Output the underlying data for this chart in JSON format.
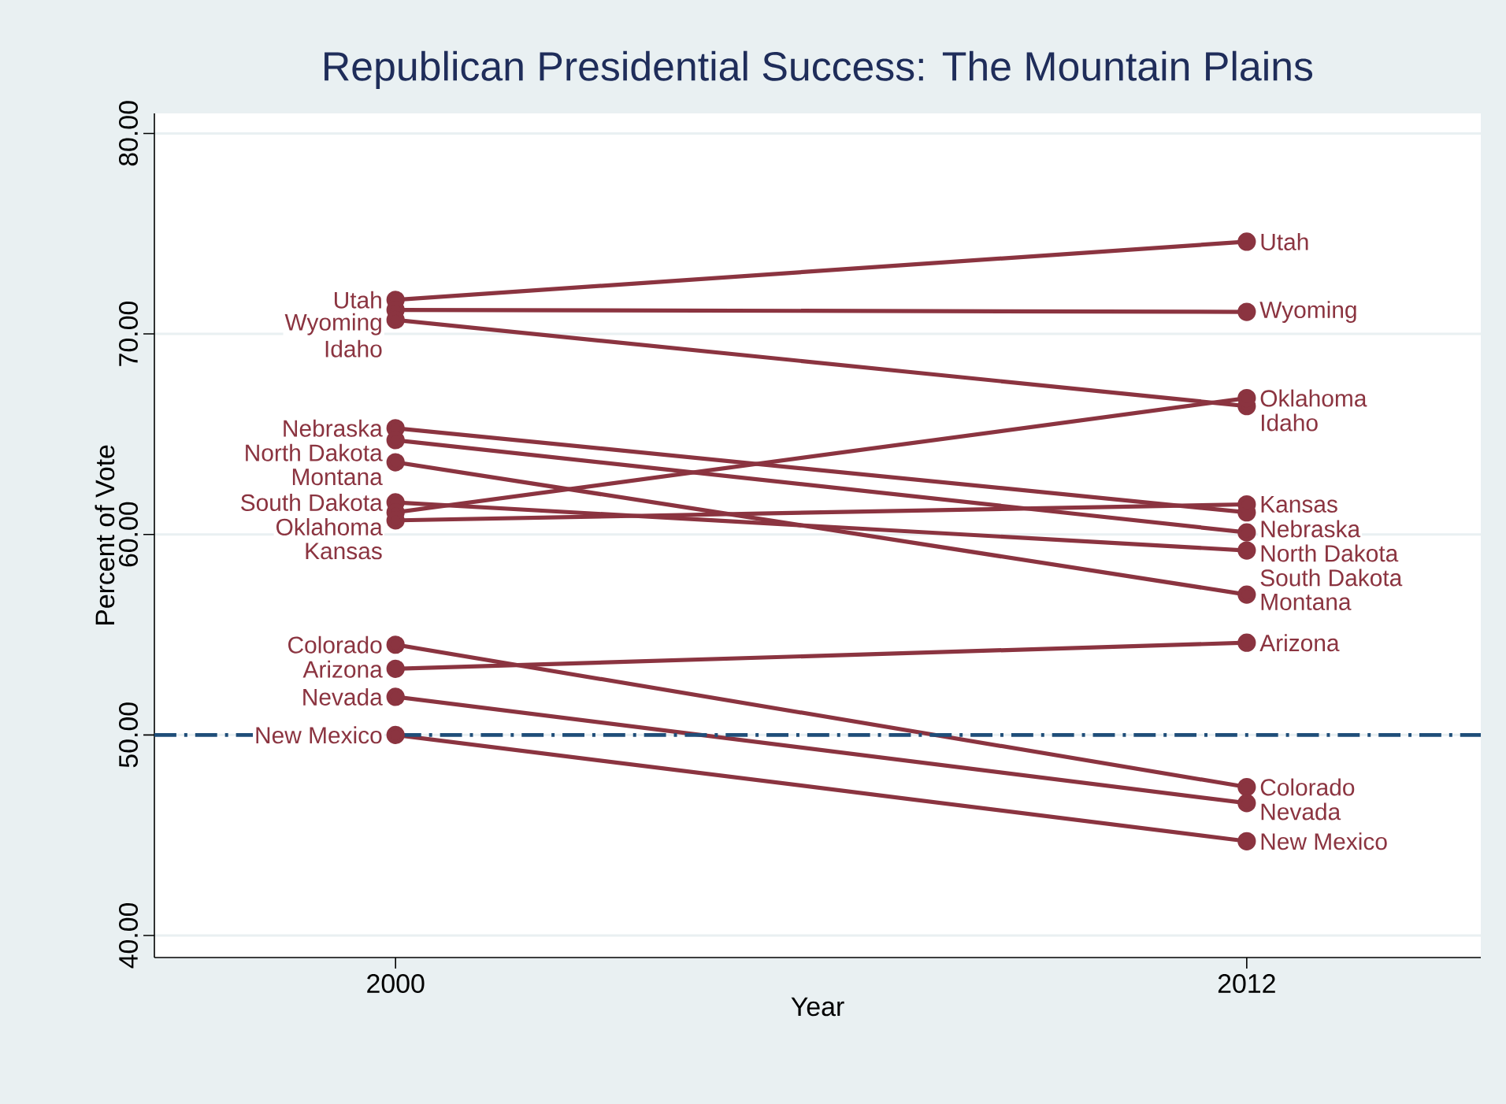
{
  "chart_data": {
    "type": "line",
    "title": "Republican Presidential Success: The Mountain Plains",
    "xlabel": "Year",
    "ylabel": "Percent of Vote",
    "x": [
      2000,
      2012
    ],
    "xlim": [
      1996.6,
      2015.3
    ],
    "xticks": [
      2000,
      2012
    ],
    "ylim": [
      38.9,
      81.0
    ],
    "yticks": [
      {
        "value": 40,
        "label": "40.00"
      },
      {
        "value": 50,
        "label": "50.00"
      },
      {
        "value": 60,
        "label": "60.00"
      },
      {
        "value": 70,
        "label": "70.00"
      },
      {
        "value": 80,
        "label": "80.00"
      }
    ],
    "grid": "y",
    "marker": "circle",
    "line_style": "solid",
    "ref_lines": [
      {
        "axis": "y",
        "value": 50,
        "color": "#1f4e79",
        "line_style": "dashdot"
      }
    ],
    "series": [
      {
        "name": "Utah",
        "color": "#8b3440",
        "values": [
          71.7,
          74.6
        ]
      },
      {
        "name": "Wyoming",
        "color": "#8b3440",
        "values": [
          71.2,
          71.1
        ]
      },
      {
        "name": "Idaho",
        "color": "#8b3440",
        "values": [
          70.7,
          66.4
        ]
      },
      {
        "name": "Nebraska",
        "color": "#8b3440",
        "values": [
          65.3,
          61.1
        ]
      },
      {
        "name": "North Dakota",
        "color": "#8b3440",
        "values": [
          64.7,
          60.1
        ]
      },
      {
        "name": "Montana",
        "color": "#8b3440",
        "values": [
          63.6,
          57.0
        ]
      },
      {
        "name": "South Dakota",
        "color": "#8b3440",
        "values": [
          61.6,
          59.2
        ]
      },
      {
        "name": "Oklahoma",
        "color": "#8b3440",
        "values": [
          61.1,
          66.8
        ]
      },
      {
        "name": "Kansas",
        "color": "#8b3440",
        "values": [
          60.7,
          61.5
        ]
      },
      {
        "name": "Colorado",
        "color": "#8b3440",
        "values": [
          54.5,
          47.4
        ]
      },
      {
        "name": "Arizona",
        "color": "#8b3440",
        "values": [
          53.3,
          54.6
        ]
      },
      {
        "name": "Nevada",
        "color": "#8b3440",
        "values": [
          51.9,
          46.6
        ]
      },
      {
        "name": "New Mexico",
        "color": "#8b3440",
        "values": [
          50.0,
          44.7
        ]
      }
    ]
  }
}
